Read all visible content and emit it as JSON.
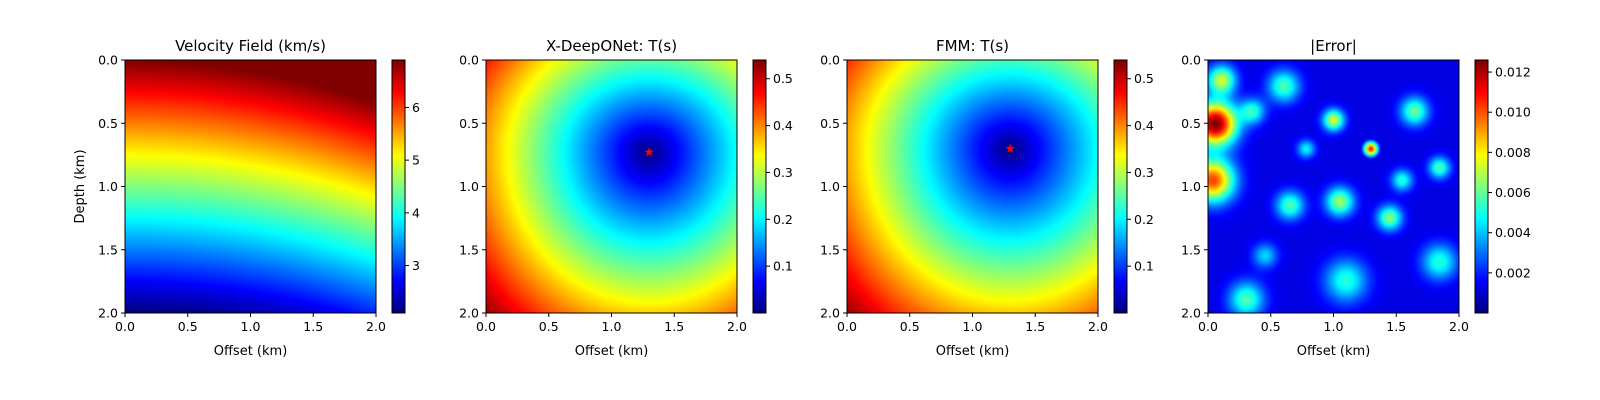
{
  "chart_data": [
    {
      "type": "heatmap",
      "title": "Velocity Field (km/s)",
      "xlabel": "Offset (km)",
      "ylabel": "Depth (km)",
      "xlim": [
        0,
        2
      ],
      "ylim": [
        2,
        0
      ],
      "x_ticks": [
        "0.0",
        "0.5",
        "1.0",
        "1.5",
        "2.0"
      ],
      "y_ticks": [
        "0.0",
        "0.5",
        "1.0",
        "1.5",
        "2.0"
      ],
      "colormap": "jet",
      "colorbar": {
        "range": [
          2.1,
          6.9
        ],
        "ticks": [
          3,
          4,
          5,
          6
        ]
      },
      "field": {
        "kind": "gradient",
        "v_top": 6.9,
        "v_bottom": 2.1,
        "curvature": 0.55
      }
    },
    {
      "type": "heatmap",
      "title": "X-DeepONet: T(s)",
      "xlabel": "Offset (km)",
      "ylabel": "",
      "xlim": [
        0,
        2
      ],
      "ylim": [
        2,
        0
      ],
      "x_ticks": [
        "0.0",
        "0.5",
        "1.0",
        "1.5",
        "2.0"
      ],
      "y_ticks": [
        "0.0",
        "0.5",
        "1.0",
        "1.5",
        "2.0"
      ],
      "colormap": "jet",
      "colorbar": {
        "range": [
          0.0,
          0.54
        ],
        "ticks": [
          0.1,
          0.2,
          0.3,
          0.4,
          0.5
        ]
      },
      "source": {
        "x": 1.3,
        "y": 0.73,
        "marker": "star",
        "color": "#ff0000"
      },
      "field": {
        "kind": "traveltime",
        "tmax": 0.54
      }
    },
    {
      "type": "heatmap",
      "title": "FMM: T(s)",
      "xlabel": "Offset (km)",
      "ylabel": "",
      "xlim": [
        0,
        2
      ],
      "ylim": [
        2,
        0
      ],
      "x_ticks": [
        "0.0",
        "0.5",
        "1.0",
        "1.5",
        "2.0"
      ],
      "y_ticks": [
        "0.0",
        "0.5",
        "1.0",
        "1.5",
        "2.0"
      ],
      "colormap": "jet",
      "colorbar": {
        "range": [
          0.0,
          0.54
        ],
        "ticks": [
          0.1,
          0.2,
          0.3,
          0.4,
          0.5
        ]
      },
      "source": {
        "x": 1.3,
        "y": 0.7,
        "marker": "star",
        "color": "#ff0000"
      },
      "field": {
        "kind": "traveltime",
        "tmax": 0.54
      }
    },
    {
      "type": "heatmap",
      "title": "|Error|",
      "xlabel": "Offset (km)",
      "ylabel": "",
      "xlim": [
        0,
        2
      ],
      "ylim": [
        2,
        0
      ],
      "x_ticks": [
        "0.0",
        "0.5",
        "1.0",
        "1.5",
        "2.0"
      ],
      "y_ticks": [
        "0.0",
        "0.5",
        "1.0",
        "1.5",
        "2.0"
      ],
      "colormap": "jet",
      "colorbar": {
        "range": [
          0.0,
          0.0126
        ],
        "ticks": [
          0.002,
          0.004,
          0.006,
          0.008,
          0.01,
          0.012
        ],
        "tick_labels": [
          "0.002",
          "0.004",
          "0.006",
          "0.008",
          "0.010",
          "0.012"
        ]
      },
      "field": {
        "kind": "error",
        "vmax": 0.0126,
        "peak": {
          "x": 1.3,
          "y": 0.7
        }
      }
    }
  ],
  "colors": {
    "source_marker": "#ff0000",
    "axis": "#000000"
  }
}
